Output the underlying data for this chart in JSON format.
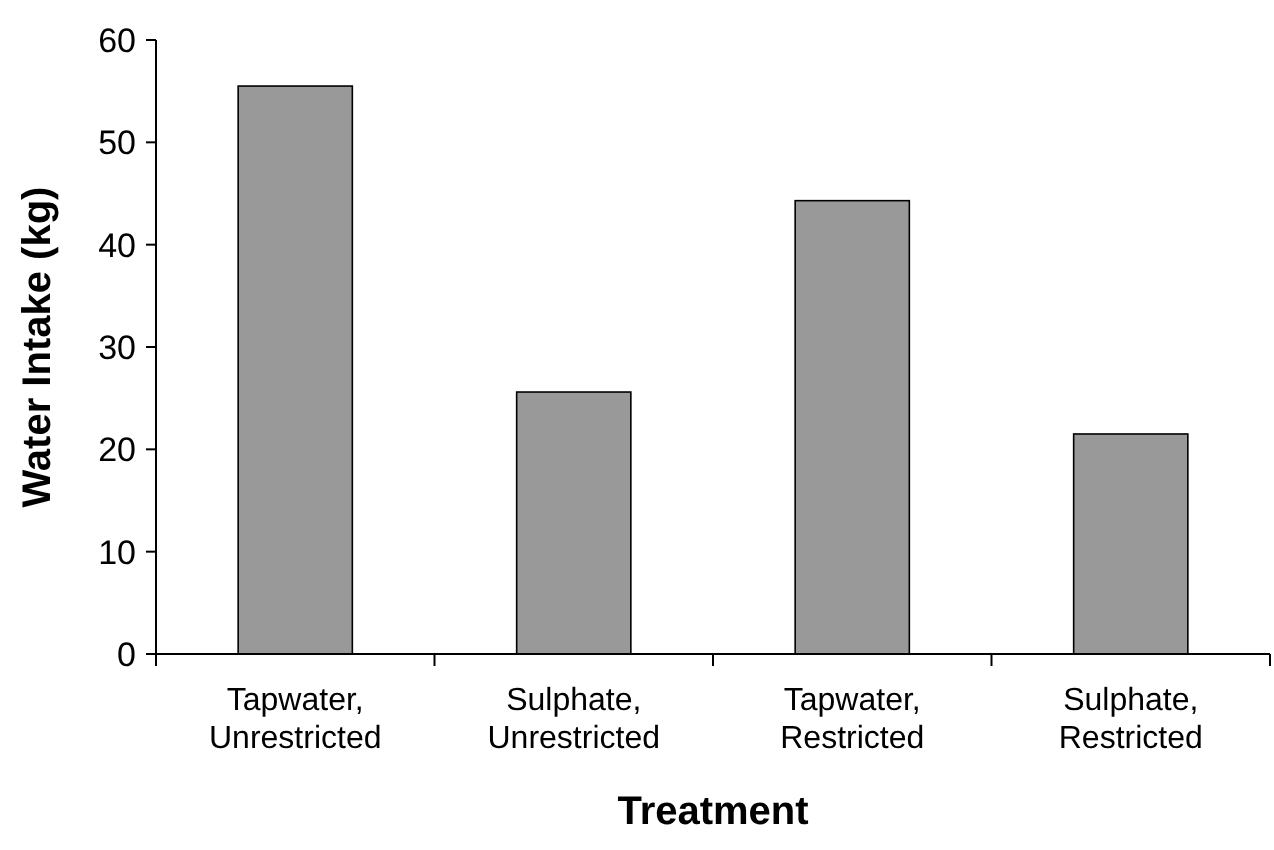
{
  "chart_data": {
    "type": "bar",
    "xlabel": "Treatment",
    "ylabel": "Water Intake (kg)",
    "categories": [
      "Tapwater, Unrestricted",
      "Sulphate, Unrestricted",
      "Tapwater, Restricted",
      "Sulphate, Restricted"
    ],
    "values": [
      55.5,
      25.6,
      44.3,
      21.5
    ],
    "color": "#999999",
    "ylim": [
      0,
      60
    ],
    "yticks": [
      0,
      10,
      20,
      30,
      40,
      50,
      60
    ],
    "grid": false
  }
}
